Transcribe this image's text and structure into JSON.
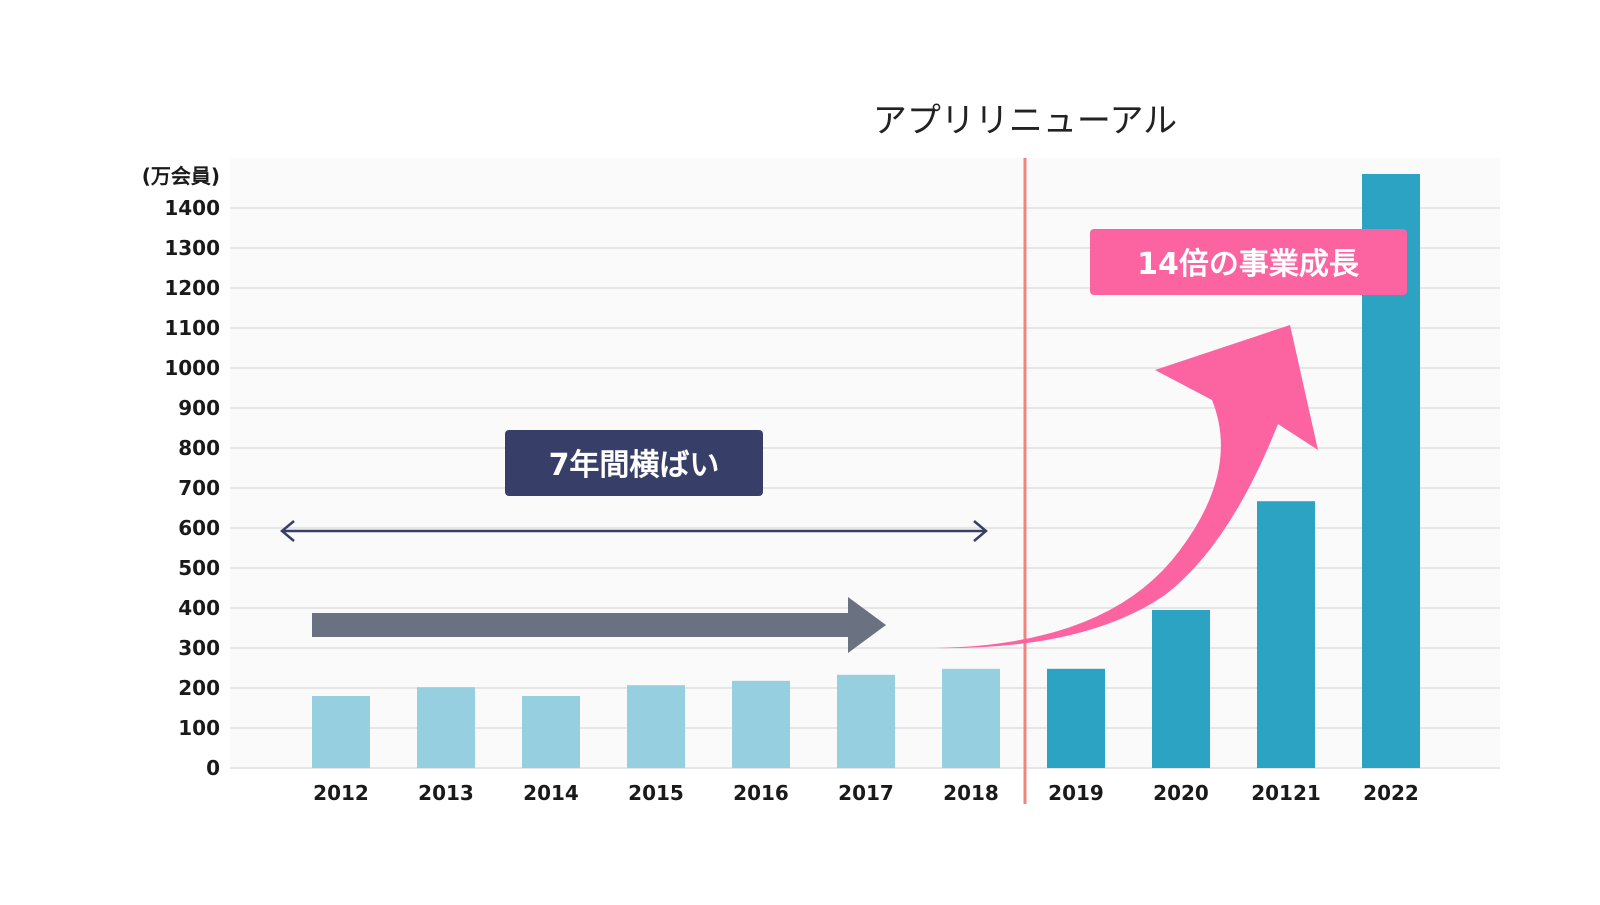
{
  "chart_data": {
    "type": "bar",
    "unit_label": "(万会員)",
    "categories": [
      "2012",
      "2013",
      "2014",
      "2015",
      "2016",
      "2017",
      "2018",
      "2019",
      "2020",
      "20121",
      "2022"
    ],
    "values": [
      180,
      202,
      180,
      207,
      218,
      233,
      248,
      248,
      395,
      667,
      1485
    ],
    "ylim": [
      0,
      1500
    ],
    "yticks": [
      0,
      100,
      200,
      300,
      400,
      500,
      600,
      700,
      800,
      900,
      1000,
      1100,
      1200,
      1300,
      1400
    ],
    "grid": true,
    "colors": {
      "before": "#96cfe0",
      "after": "#2da3c4",
      "divider": "#f0857f",
      "flat_arrow": "#6a7180",
      "growth_arrow": "#fb63a1",
      "flat_label_bg": "#373f68",
      "growth_label_bg": "#fb63a1",
      "double_arrow": "#373f68",
      "plot_bg": "#fafafa",
      "gridline": "#e6e6e6"
    },
    "divider_label": "アプリリニューアル",
    "annotations": {
      "flat_label": "7年間横ばい",
      "growth_label": "14倍の事業成長"
    }
  }
}
